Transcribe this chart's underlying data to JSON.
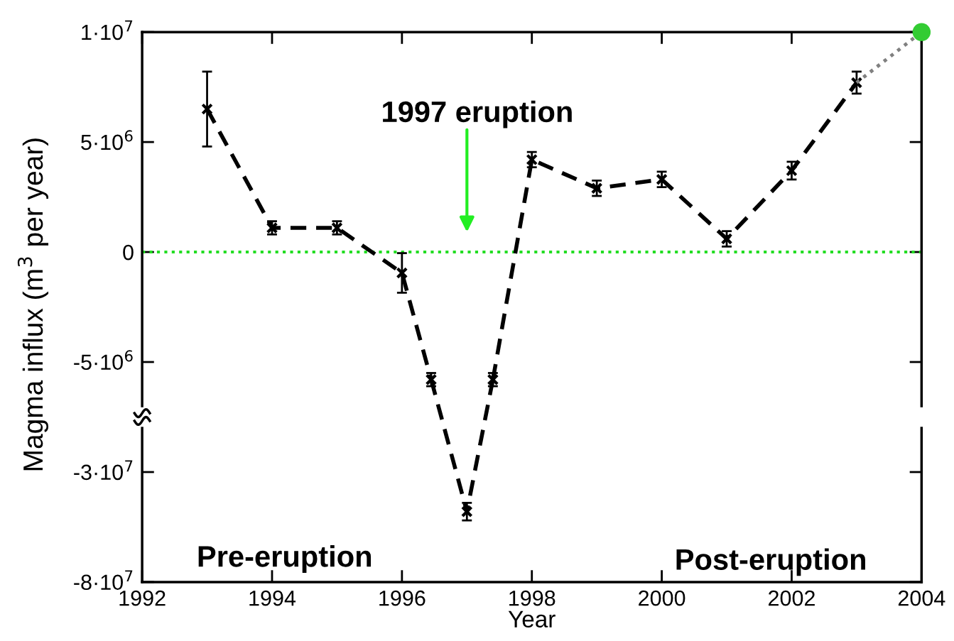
{
  "chart_data": [
    {
      "type": "line",
      "ylabel": "Magma influx (m$^{3}$ per year)",
      "xlim": [
        1992,
        2004
      ],
      "xticks": [
        1992,
        1994,
        1996,
        1998,
        2000,
        2002,
        2004
      ],
      "tick_labels": "y",
      "ylim": [
        -7000000,
        10000000
      ],
      "yticks": [
        {
          "value": -5000000,
          "label": "-5·10$^{6}$"
        },
        {
          "value": 0,
          "label": "0"
        },
        {
          "value": 5000000,
          "label": "5·10$^{6}$"
        },
        {
          "value": 10000000,
          "label": "1·10$^{7}$"
        }
      ],
      "series": [
        {
          "color": "#000000",
          "line_style": "dashed",
          "marker": "cross",
          "x": [
            1993,
            1994,
            1995,
            1996,
            1996.45,
            1997,
            1997.4,
            1998,
            1999,
            2000,
            2001,
            2002,
            2003
          ],
          "values": [
            6500000,
            1100000,
            1100000,
            -950000,
            -5800000,
            null,
            -5800000,
            4200000,
            2900000,
            3300000,
            600000,
            3700000,
            7700000
          ],
          "errors": [
            1700000,
            300000,
            300000,
            900000,
            300000,
            null,
            300000,
            350000,
            350000,
            350000,
            350000,
            400000,
            500000
          ]
        },
        {
          "color": "#808080",
          "line_style": "dotted",
          "marker": "none",
          "x": [
            2003,
            2004
          ],
          "values": [
            7700000,
            10000000
          ]
        },
        {
          "type": "scatter",
          "color": "#33cc33",
          "marker": "circle",
          "x": [
            2004
          ],
          "values": [
            10000000
          ]
        }
      ],
      "ref_lines": [
        {
          "axis": "y",
          "value": 0,
          "color": "#22dd22",
          "line_style": "dotted"
        }
      ],
      "annotations": [
        "1997 eruption"
      ],
      "grid": false,
      "legend": false
    },
    {
      "type": "line",
      "xlabel": "Year",
      "xlim": [
        1992,
        2004
      ],
      "xticks": [
        1992,
        1994,
        1996,
        1998,
        2000,
        2002,
        2004
      ],
      "ylim": [
        -80000000,
        -10000000
      ],
      "yticks": [
        {
          "value": -80000000,
          "label": "-8·10$^{7}$"
        },
        {
          "value": -30000000,
          "label": "-3·10$^{7}$"
        }
      ],
      "series": [
        {
          "color": "#000000",
          "line_style": "dashed",
          "marker": "cross",
          "x": [
            1997
          ],
          "values": [
            -48000000
          ],
          "errors": [
            4000000
          ]
        }
      ],
      "annotations": [
        "Pre-eruption",
        "Post-eruption"
      ],
      "grid": false,
      "legend": false
    }
  ]
}
